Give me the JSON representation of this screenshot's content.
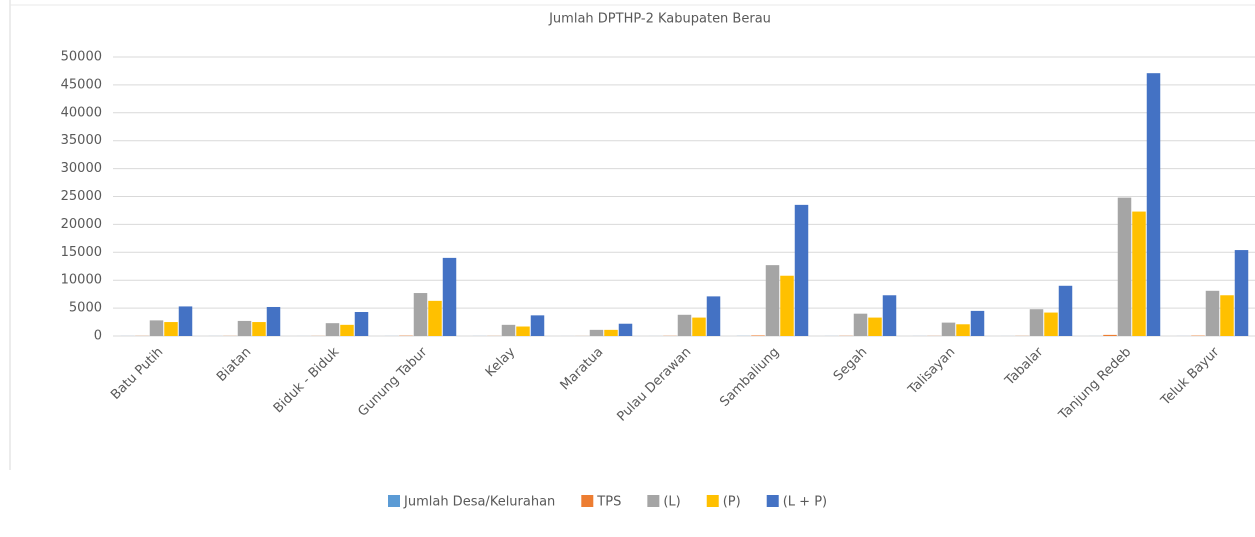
{
  "chart_data": {
    "type": "bar",
    "title": "Jumlah DPTHP-2 Kabupaten Berau",
    "categories": [
      "Batu Putih",
      "Biatan",
      "Biduk - Biduk",
      "Gunung Tabur",
      "Kelay",
      "Maratua",
      "Pulau Derawan",
      "Sambaliung",
      "Segah",
      "Talisayan",
      "Tabalar",
      "Tanjung Redeb",
      "Teluk Bayur"
    ],
    "series": [
      {
        "name": "Jumlah Desa/Kelurahan",
        "color": "#5b9bd5",
        "values": [
          10,
          8,
          6,
          11,
          11,
          4,
          5,
          23,
          11,
          10,
          5,
          7,
          9
        ]
      },
      {
        "name": "TPS",
        "color": "#ed7d31",
        "values": [
          25,
          24,
          20,
          60,
          20,
          10,
          33,
          100,
          35,
          22,
          25,
          200,
          70
        ]
      },
      {
        "name": "(L)",
        "color": "#a5a5a5",
        "values": [
          2800,
          2700,
          2300,
          7700,
          2000,
          1100,
          3800,
          12700,
          4000,
          2400,
          4800,
          24800,
          8100
        ]
      },
      {
        "name": "(P)",
        "color": "#ffc000",
        "values": [
          2500,
          2500,
          2000,
          6300,
          1700,
          1100,
          3300,
          10800,
          3300,
          2100,
          4200,
          22300,
          7300
        ]
      },
      {
        "name": "(L + P)",
        "color": "#4472c4",
        "values": [
          5300,
          5200,
          4300,
          14000,
          3700,
          2200,
          7100,
          23500,
          7300,
          4500,
          9000,
          47100,
          15400
        ]
      }
    ],
    "ylim": [
      0,
      50000
    ],
    "yticks": [
      0,
      5000,
      10000,
      15000,
      20000,
      25000,
      30000,
      35000,
      40000,
      45000,
      50000
    ],
    "grid": true,
    "legend": "bottom"
  }
}
